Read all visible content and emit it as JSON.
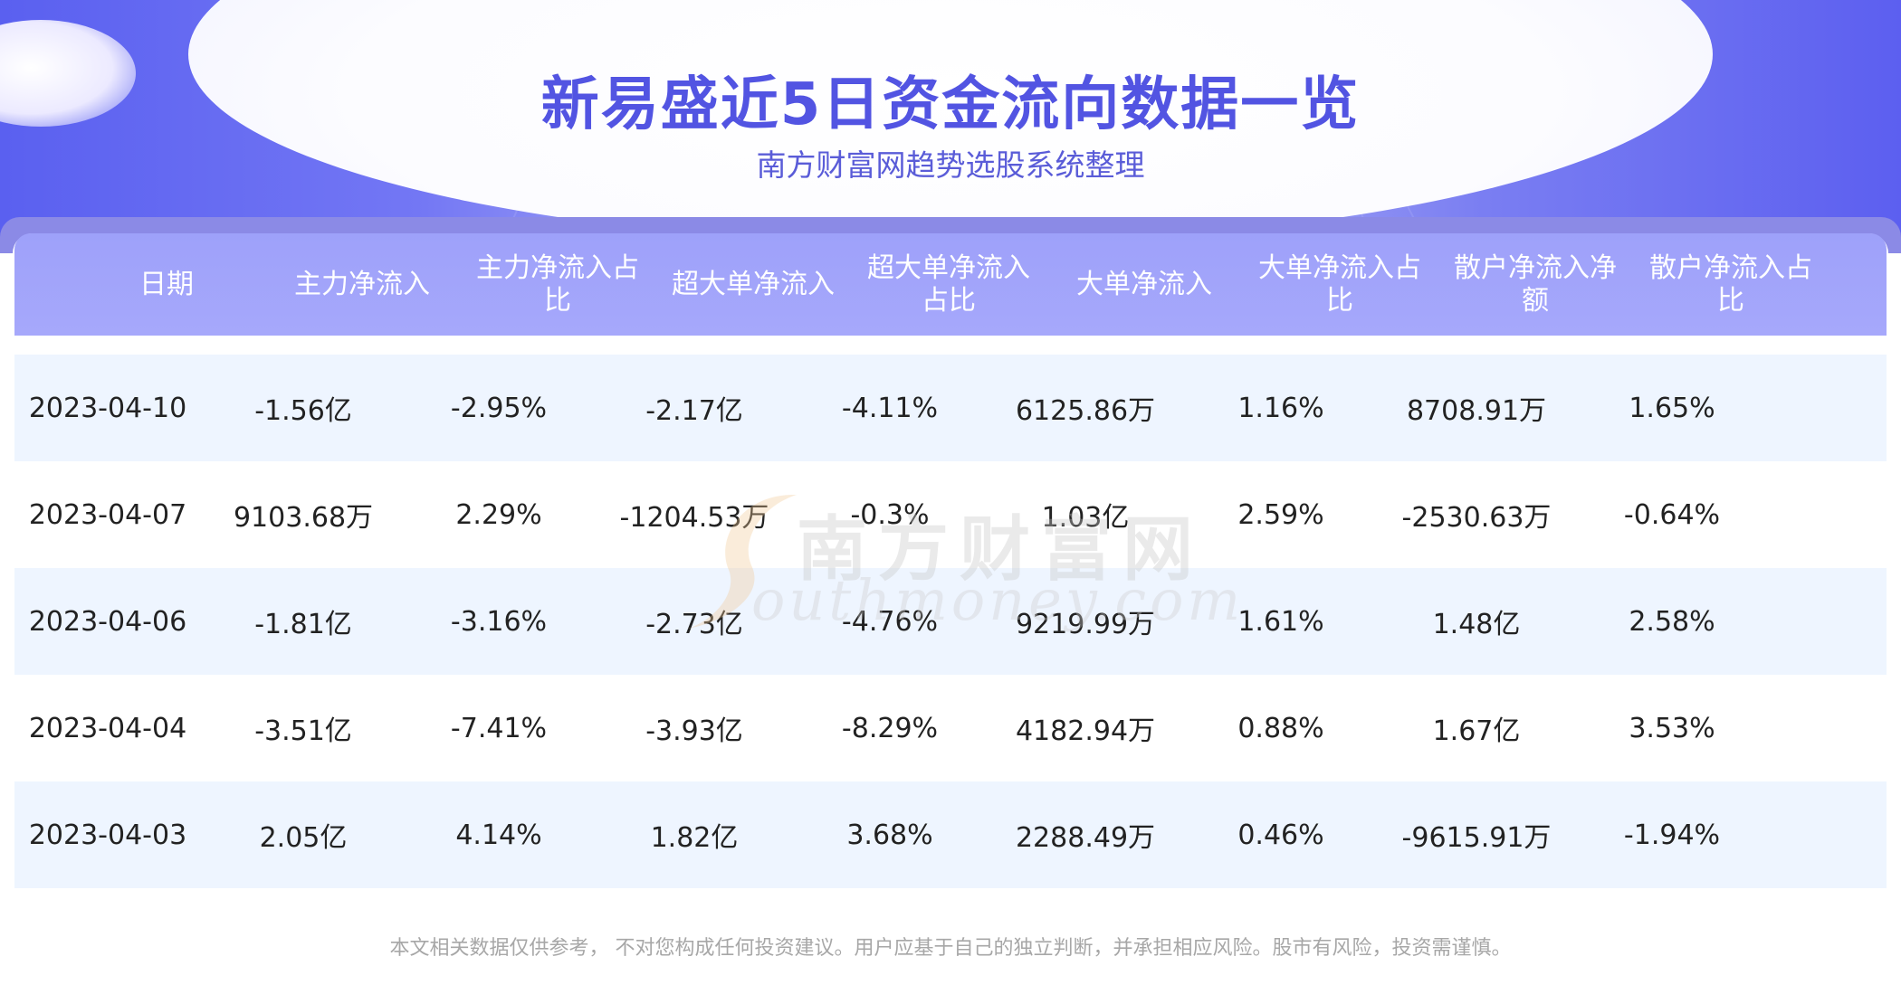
{
  "header": {
    "title": "新易盛近5日资金流向数据一览",
    "subtitle": "南方财富网趋势选股系统整理"
  },
  "table": {
    "columns": [
      "日期",
      "主力净流入",
      "主力净流入占比",
      "超大单净流入",
      "超大单净流入占比",
      "大单净流入",
      "大单净流入占比",
      "散户净流入净额",
      "散户净流入占比"
    ],
    "rows": [
      [
        "2023-04-10",
        "-1.56亿",
        "-2.95%",
        "-2.17亿",
        "-4.11%",
        "6125.86万",
        "1.16%",
        "8708.91万",
        "1.65%"
      ],
      [
        "2023-04-07",
        "9103.68万",
        "2.29%",
        "-1204.53万",
        "-0.3%",
        "1.03亿",
        "2.59%",
        "-2530.63万",
        "-0.64%"
      ],
      [
        "2023-04-06",
        "-1.81亿",
        "-3.16%",
        "-2.73亿",
        "-4.76%",
        "9219.99万",
        "1.61%",
        "1.48亿",
        "2.58%"
      ],
      [
        "2023-04-04",
        "-3.51亿",
        "-7.41%",
        "-3.93亿",
        "-8.29%",
        "4182.94万",
        "0.88%",
        "1.67亿",
        "3.53%"
      ],
      [
        "2023-04-03",
        "2.05亿",
        "4.14%",
        "1.82亿",
        "3.68%",
        "2288.49万",
        "0.46%",
        "-9615.91万",
        "-1.94%"
      ]
    ]
  },
  "watermark": {
    "cn": "南方财富网",
    "en": "outhmoney.com"
  },
  "footer": {
    "disclaimer": "本文相关数据仅供参考， 不对您构成任何投资建议。用户应基于自己的独立判断，并承担相应风险。股市有风险，投资需谨慎。"
  },
  "colors": {
    "title": "#5254e2",
    "header_bg": "#a2a5fa",
    "row_shade": "#eef5ff",
    "text": "#222222"
  }
}
